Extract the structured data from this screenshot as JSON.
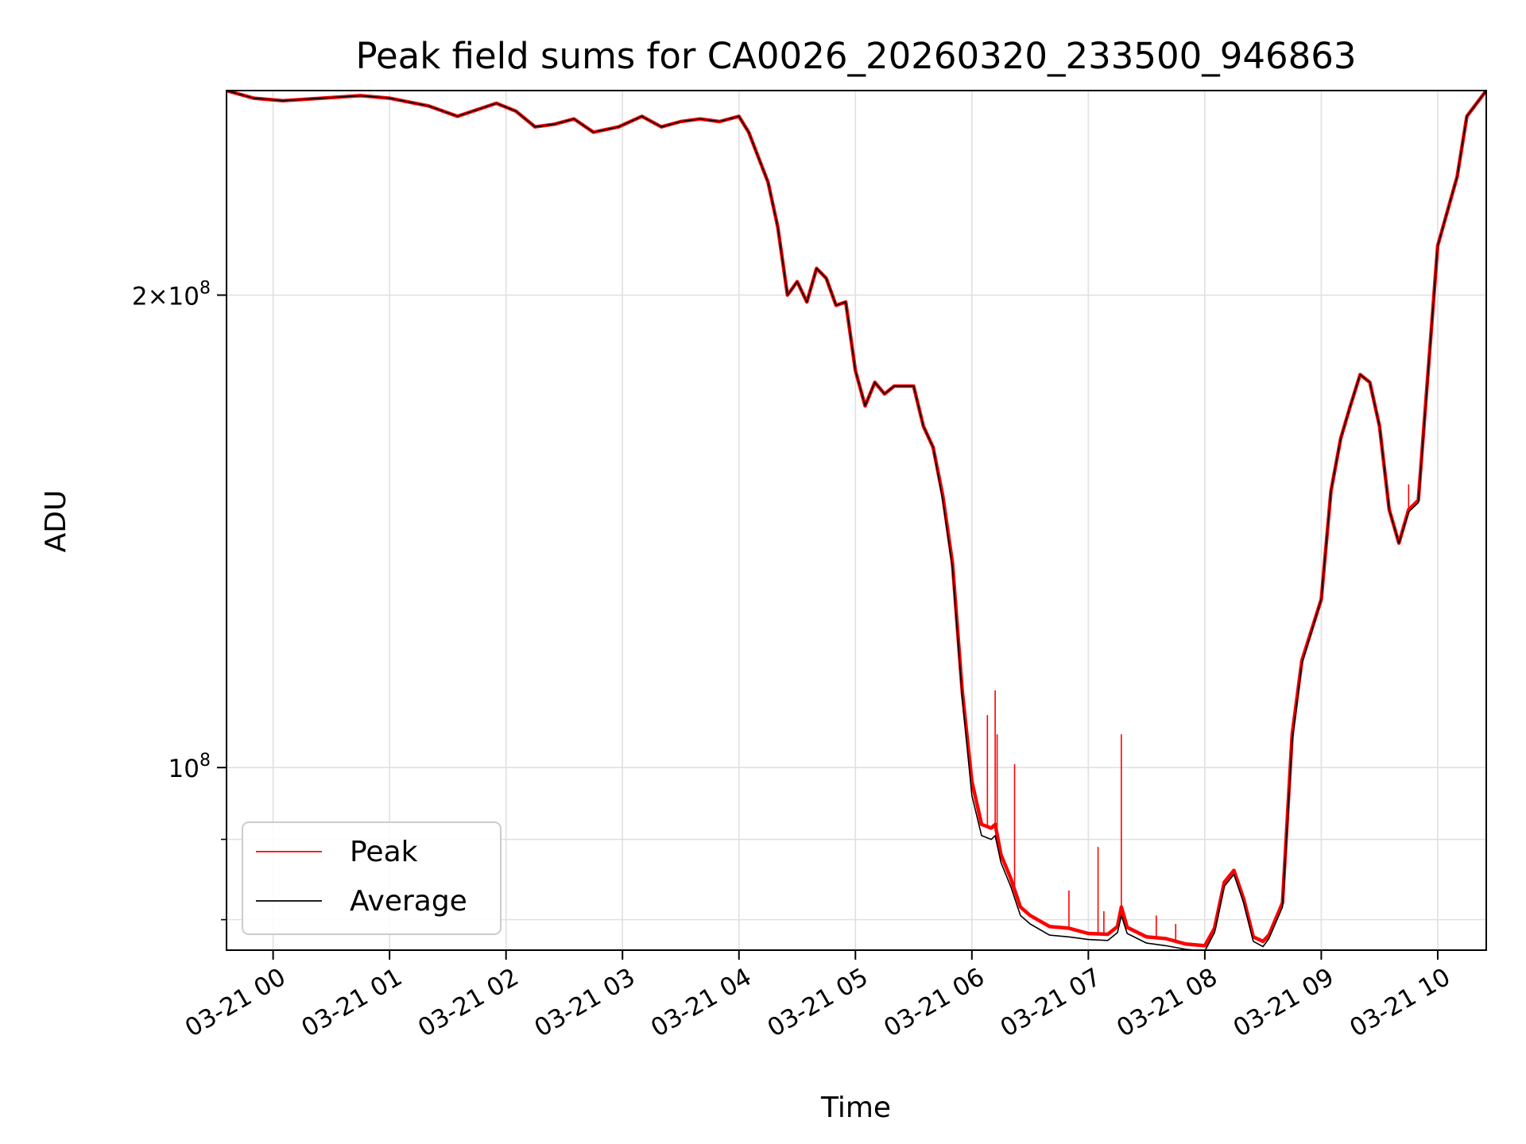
{
  "chart_data": {
    "type": "line",
    "title": "Peak field sums for CA0026_20260320_233500_946863",
    "xlabel": "Time",
    "ylabel": "ADU",
    "yscale": "log",
    "grid": true,
    "legend_placement": "lower-left",
    "xlim": [
      "03-20 23:36",
      "03-21 10:25"
    ],
    "ylim": [
      76500000,
      270000000
    ],
    "x_ticks": [
      "03-21 00",
      "03-21 01",
      "03-21 02",
      "03-21 03",
      "03-21 04",
      "03-21 05",
      "03-21 06",
      "03-21 07",
      "03-21 08",
      "03-21 09",
      "03-21 10"
    ],
    "y_ticks": [
      {
        "value": 100000000,
        "base": "10",
        "exp": "8",
        "coef": ""
      },
      {
        "value": 200000000,
        "base": "10",
        "exp": "8",
        "coef": "2×"
      }
    ],
    "y_minor_ticks": [
      80000000,
      90000000
    ],
    "series": [
      {
        "name": "Peak",
        "color": "#ff0000",
        "x": [
          "03-20 23:36",
          "03-20 23:50",
          "03-21 00:05",
          "03-21 00:25",
          "03-21 00:45",
          "03-21 01:00",
          "03-21 01:20",
          "03-21 01:35",
          "03-21 01:55",
          "03-21 02:05",
          "03-21 02:15",
          "03-21 02:25",
          "03-21 02:35",
          "03-21 02:45",
          "03-21 02:58",
          "03-21 03:10",
          "03-21 03:20",
          "03-21 03:30",
          "03-21 03:40",
          "03-21 03:50",
          "03-21 04:00",
          "03-21 04:05",
          "03-21 04:15",
          "03-21 04:20",
          "03-21 04:25",
          "03-21 04:30",
          "03-21 04:35",
          "03-21 04:40",
          "03-21 04:45",
          "03-21 04:50",
          "03-21 04:55",
          "03-21 05:00",
          "03-21 05:05",
          "03-21 05:10",
          "03-21 05:15",
          "03-21 05:20",
          "03-21 05:30",
          "03-21 05:35",
          "03-21 05:40",
          "03-21 05:45",
          "03-21 05:50",
          "03-21 05:55",
          "03-21 06:00",
          "03-21 06:05",
          "03-21 06:10",
          "03-21 06:12",
          "03-21 06:15",
          "03-21 06:20",
          "03-21 06:25",
          "03-21 06:30",
          "03-21 06:40",
          "03-21 06:50",
          "03-21 07:00",
          "03-21 07:10",
          "03-21 07:15",
          "03-21 07:17",
          "03-21 07:20",
          "03-21 07:30",
          "03-21 07:40",
          "03-21 07:50",
          "03-21 08:00",
          "03-21 08:05",
          "03-21 08:10",
          "03-21 08:15",
          "03-21 08:20",
          "03-21 08:25",
          "03-21 08:30",
          "03-21 08:33",
          "03-21 08:40",
          "03-21 08:45",
          "03-21 08:50",
          "03-21 09:00",
          "03-21 09:05",
          "03-21 09:10",
          "03-21 09:15",
          "03-21 09:20",
          "03-21 09:25",
          "03-21 09:30",
          "03-21 09:35",
          "03-21 09:40",
          "03-21 09:45",
          "03-21 09:50",
          "03-21 10:00",
          "03-21 10:10",
          "03-21 10:15",
          "03-21 10:25"
        ],
        "values": [
          270000000,
          267000000,
          266000000,
          267000000,
          268000000,
          267000000,
          264000000,
          260000000,
          265000000,
          262000000,
          256000000,
          257000000,
          259000000,
          254000000,
          256000000,
          260000000,
          256000000,
          258000000,
          259000000,
          258000000,
          260000000,
          254000000,
          236000000,
          221000000,
          200000000,
          204000000,
          198000000,
          208000000,
          205000000,
          197000000,
          198000000,
          179000000,
          170000000,
          176000000,
          173000000,
          175000000,
          175000000,
          165000000,
          160000000,
          149000000,
          135000000,
          112000000,
          98000000,
          92000000,
          91500000,
          92000000,
          88000000,
          85000000,
          81500000,
          80500000,
          79200000,
          79000000,
          78400000,
          78300000,
          79200000,
          81500000,
          79100000,
          78000000,
          77800000,
          77200000,
          77000000,
          79000000,
          84500000,
          86000000,
          82500000,
          78000000,
          77500000,
          78200000,
          82000000,
          105000000,
          117000000,
          128000000,
          150000000,
          162000000,
          170000000,
          178000000,
          176000000,
          165000000,
          146000000,
          139000000,
          146000000,
          148000000,
          215000000,
          238000000,
          260000000,
          270000000
        ],
        "spikes": [
          {
            "x": "03-21 06:08",
            "value": 108000000
          },
          {
            "x": "03-21 06:12",
            "value": 112000000
          },
          {
            "x": "03-21 06:13",
            "value": 105000000
          },
          {
            "x": "03-21 06:22",
            "value": 100500000
          },
          {
            "x": "03-21 06:50",
            "value": 83500000
          },
          {
            "x": "03-21 07:05",
            "value": 89000000
          },
          {
            "x": "03-21 07:08",
            "value": 81000000
          },
          {
            "x": "03-21 07:17",
            "value": 105000000
          },
          {
            "x": "03-21 07:35",
            "value": 80500000
          },
          {
            "x": "03-21 07:45",
            "value": 79500000
          },
          {
            "x": "03-21 09:45",
            "value": 151500000
          }
        ]
      },
      {
        "name": "Average",
        "color": "#000000",
        "x": [
          "03-20 23:36",
          "03-20 23:50",
          "03-21 00:05",
          "03-21 00:25",
          "03-21 00:45",
          "03-21 01:00",
          "03-21 01:20",
          "03-21 01:35",
          "03-21 01:55",
          "03-21 02:05",
          "03-21 02:15",
          "03-21 02:25",
          "03-21 02:35",
          "03-21 02:45",
          "03-21 02:58",
          "03-21 03:10",
          "03-21 03:20",
          "03-21 03:30",
          "03-21 03:40",
          "03-21 03:50",
          "03-21 04:00",
          "03-21 04:05",
          "03-21 04:15",
          "03-21 04:20",
          "03-21 04:25",
          "03-21 04:30",
          "03-21 04:35",
          "03-21 04:40",
          "03-21 04:45",
          "03-21 04:50",
          "03-21 04:55",
          "03-21 05:00",
          "03-21 05:05",
          "03-21 05:10",
          "03-21 05:15",
          "03-21 05:20",
          "03-21 05:30",
          "03-21 05:35",
          "03-21 05:40",
          "03-21 05:45",
          "03-21 05:50",
          "03-21 05:55",
          "03-21 06:00",
          "03-21 06:05",
          "03-21 06:10",
          "03-21 06:12",
          "03-21 06:15",
          "03-21 06:20",
          "03-21 06:25",
          "03-21 06:30",
          "03-21 06:40",
          "03-21 06:50",
          "03-21 07:00",
          "03-21 07:10",
          "03-21 07:15",
          "03-21 07:17",
          "03-21 07:20",
          "03-21 07:30",
          "03-21 07:40",
          "03-21 07:50",
          "03-21 08:00",
          "03-21 08:05",
          "03-21 08:10",
          "03-21 08:15",
          "03-21 08:20",
          "03-21 08:25",
          "03-21 08:30",
          "03-21 08:33",
          "03-21 08:40",
          "03-21 08:45",
          "03-21 08:50",
          "03-21 09:00",
          "03-21 09:05",
          "03-21 09:10",
          "03-21 09:15",
          "03-21 09:20",
          "03-21 09:25",
          "03-21 09:30",
          "03-21 09:35",
          "03-21 09:40",
          "03-21 09:45",
          "03-21 09:50",
          "03-21 10:00",
          "03-21 10:10",
          "03-21 10:15",
          "03-21 10:25"
        ],
        "values": [
          270000000,
          267000000,
          266000000,
          267000000,
          268000000,
          267000000,
          264000000,
          260000000,
          265000000,
          262000000,
          256000000,
          257000000,
          259000000,
          254000000,
          256000000,
          260000000,
          256000000,
          258000000,
          259000000,
          258000000,
          260000000,
          254000000,
          236000000,
          221000000,
          200000000,
          204000000,
          198000000,
          208000000,
          205000000,
          197000000,
          198000000,
          179000000,
          170000000,
          176000000,
          173000000,
          175000000,
          175000000,
          165000000,
          160000000,
          148000000,
          134000000,
          111000000,
          96000000,
          90500000,
          90000000,
          90500000,
          87000000,
          84000000,
          80500000,
          79500000,
          78200000,
          78000000,
          77700000,
          77600000,
          78500000,
          80500000,
          78400000,
          77300000,
          77000000,
          76600000,
          76400000,
          78500000,
          84000000,
          85500000,
          82000000,
          77500000,
          76900000,
          77800000,
          81500000,
          104000000,
          116500000,
          128000000,
          150000000,
          162000000,
          170000000,
          178000000,
          176000000,
          165000000,
          146000000,
          139000000,
          145500000,
          147500000,
          215000000,
          238000000,
          260000000,
          270000000
        ]
      }
    ]
  }
}
